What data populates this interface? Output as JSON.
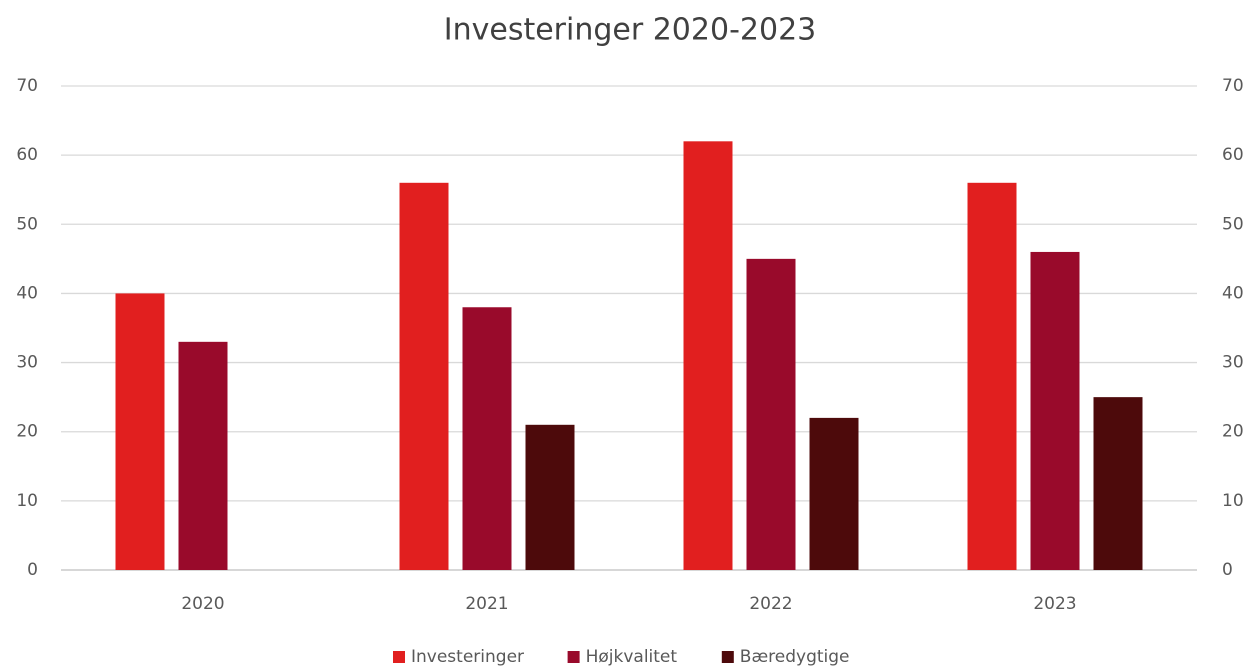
{
  "chart_data": {
    "type": "bar",
    "title": "Investeringer 2020-2023",
    "categories": [
      "2020",
      "2021",
      "2022",
      "2023"
    ],
    "series": [
      {
        "name": "Investeringer",
        "color": "#e11f1f",
        "values": [
          40,
          56,
          62,
          56
        ]
      },
      {
        "name": "Højkvalitet",
        "color": "#990a2b",
        "values": [
          33,
          38,
          45,
          46
        ]
      },
      {
        "name": "Bæredygtige",
        "color": "#4d0a0b",
        "values": [
          null,
          21,
          22,
          25
        ]
      }
    ],
    "ylim": [
      0,
      70
    ],
    "yticks": [
      0,
      10,
      20,
      30,
      40,
      50,
      60,
      70
    ],
    "y2lim": [
      0,
      70
    ],
    "y2ticks": [
      0,
      10,
      20,
      30,
      40,
      50,
      60,
      70
    ],
    "grid": true,
    "legend": "bottom"
  }
}
